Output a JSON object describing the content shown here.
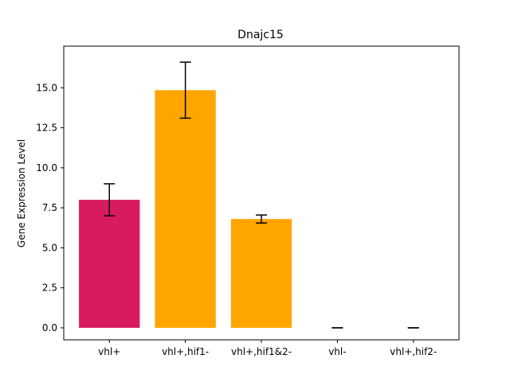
{
  "chart_data": {
    "type": "bar",
    "title": "Dnajc15",
    "xlabel": "",
    "ylabel": "Gene Expression Level",
    "categories": [
      "vhl+",
      "vhl+,hif1-",
      "vhl+,hif1&2-",
      "vhl-",
      "vhl+,hif2-"
    ],
    "values": [
      8.0,
      14.85,
      6.8,
      0.0,
      0.0
    ],
    "errors": [
      1.0,
      1.75,
      0.25,
      0.0,
      0.0
    ],
    "colors": [
      "#d81b60",
      "#ffa500",
      "#ffa500",
      "#ffa500",
      "#ffa500"
    ],
    "ylim": [
      -0.75,
      17.6
    ],
    "yticks": [
      0.0,
      2.5,
      5.0,
      7.5,
      10.0,
      12.5,
      15.0
    ],
    "ytick_labels": [
      "0.0",
      "2.5",
      "5.0",
      "7.5",
      "10.0",
      "12.5",
      "15.0"
    ],
    "grid": false,
    "legend": "none"
  }
}
